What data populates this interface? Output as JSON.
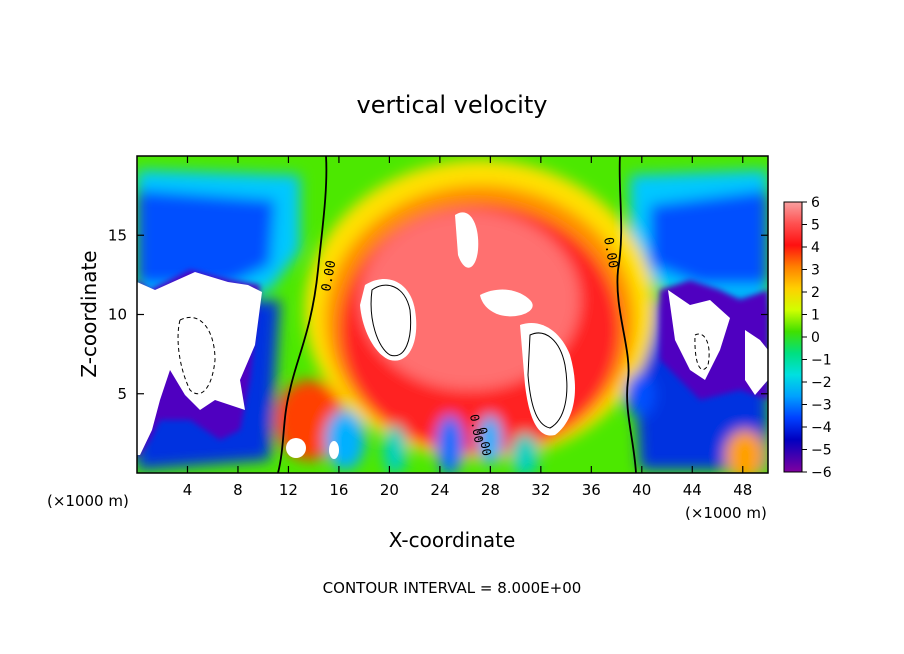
{
  "chart_data": {
    "type": "heatmap",
    "title": "vertical velocity",
    "xlabel": "X-coordinate",
    "ylabel": "Z-coordinate",
    "xlim": [
      0,
      50
    ],
    "ylim": [
      0,
      20
    ],
    "x_ticks": [
      4,
      8,
      12,
      16,
      20,
      24,
      28,
      32,
      36,
      40,
      44,
      48
    ],
    "y_ticks": [
      5,
      10,
      15
    ],
    "x_unit_label": "(×1000 m)",
    "y_unit_label": "(×1000 m)",
    "colorbar": {
      "ticks": [
        6,
        5,
        4,
        3,
        2,
        1,
        0,
        -1,
        -2,
        -3,
        -4,
        -5,
        -6
      ],
      "tick_labels": [
        "6",
        "5",
        "4",
        "3",
        "2",
        "1",
        "0",
        "−1",
        "−2",
        "−3",
        "−4",
        "−5",
        "−6"
      ],
      "range": [
        -6,
        6
      ]
    },
    "contour_labels": [
      "0.00",
      "0.00",
      "0.00",
      "0.00"
    ],
    "footnote": "CONTOUR INTERVAL = 8.000E+00"
  }
}
